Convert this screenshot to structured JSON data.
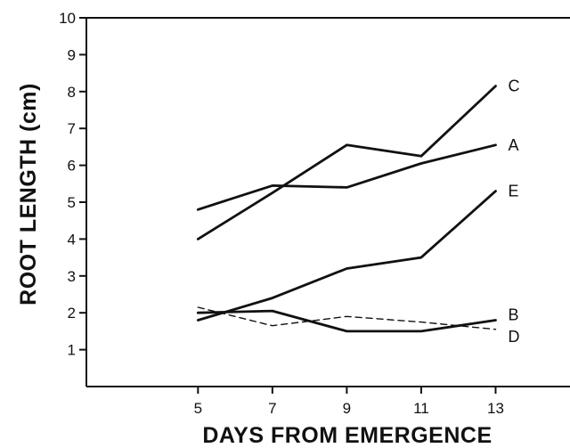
{
  "chart_data": {
    "type": "line",
    "xlabel": "DAYS FROM EMERGENCE",
    "ylabel": "ROOT LENGTH (cm)",
    "xlim": [
      2,
      15
    ],
    "ylim": [
      0,
      10
    ],
    "x_ticks": [
      5,
      7,
      9,
      11,
      13
    ],
    "y_ticks": [
      1,
      2,
      3,
      4,
      5,
      6,
      7,
      8,
      9,
      10
    ],
    "grid": false,
    "series": [
      {
        "name": "C",
        "x": [
          5,
          7,
          9,
          11,
          13
        ],
        "values": [
          4.0,
          5.25,
          6.55,
          6.25,
          8.15
        ],
        "style": "solid"
      },
      {
        "name": "A",
        "x": [
          5,
          7,
          9,
          11,
          13
        ],
        "values": [
          4.8,
          5.45,
          5.4,
          6.05,
          6.55
        ],
        "style": "solid"
      },
      {
        "name": "E",
        "x": [
          5,
          7,
          9,
          11,
          13
        ],
        "values": [
          1.8,
          2.4,
          3.2,
          3.5,
          5.3
        ],
        "style": "solid"
      },
      {
        "name": "B",
        "x": [
          5,
          7,
          9,
          11,
          13
        ],
        "values": [
          2.0,
          2.05,
          1.5,
          1.5,
          1.8
        ],
        "style": "solid"
      },
      {
        "name": "D",
        "x": [
          5,
          7,
          9,
          11,
          13
        ],
        "values": [
          2.15,
          1.65,
          1.9,
          1.75,
          1.55
        ],
        "style": "dashed"
      }
    ],
    "colors": {
      "line": "#111111",
      "axis": "#111111"
    }
  }
}
